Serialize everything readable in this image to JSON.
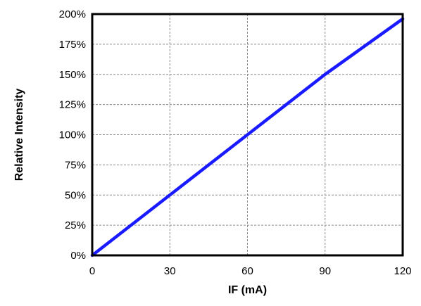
{
  "chart_data": {
    "type": "line",
    "title": "",
    "xlabel": "IF (mA)",
    "ylabel": "Relative Intensity",
    "xlim": [
      0,
      120
    ],
    "ylim": [
      0,
      200
    ],
    "xticks": [
      0,
      30,
      60,
      90,
      120
    ],
    "xtick_labels": [
      "0",
      "30",
      "60",
      "90",
      "120"
    ],
    "yticks": [
      0,
      25,
      50,
      75,
      100,
      125,
      150,
      175,
      200
    ],
    "ytick_labels": [
      "0%",
      "25%",
      "50%",
      "75%",
      "100%",
      "125%",
      "150%",
      "175%",
      "200%"
    ],
    "grid": true,
    "legend": "none",
    "series": [
      {
        "color": "#1a1aff",
        "x": [
          0,
          30,
          60,
          90,
          120
        ],
        "y": [
          0,
          50,
          100,
          150,
          196
        ]
      }
    ]
  }
}
